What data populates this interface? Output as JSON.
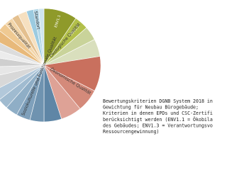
{
  "chart_data": {
    "type": "pie",
    "groups": [
      {
        "label": "Ökologische Qualität",
        "slices": [
          {
            "value": 9.5,
            "color": "#8f9a2a",
            "label": "ENV1.1"
          },
          {
            "value": 4,
            "color": "#b3c04a",
            "label": "ENV1.3"
          },
          {
            "value": 4,
            "color": "#c9d39a",
            "label": null
          },
          {
            "value": 5,
            "color": "#d9dfbd",
            "label": null
          }
        ]
      },
      {
        "label": "Ökonomische Qualität",
        "slices": [
          {
            "value": 10,
            "color": "#c9705e",
            "label": null
          },
          {
            "value": 6.5,
            "color": "#d48a7a",
            "label": null
          },
          {
            "value": 6,
            "color": "#dea296",
            "label": null
          }
        ]
      },
      {
        "label": "Soziokulturelle und Funktionale Qualität",
        "slices": [
          {
            "value": 5,
            "color": "#5f86a6",
            "label": null
          },
          {
            "value": 4,
            "color": "#6f93b0",
            "label": null
          },
          {
            "value": 4,
            "color": "#7fa0bb",
            "label": null
          },
          {
            "value": 3.5,
            "color": "#8faec6",
            "label": null
          },
          {
            "value": 3,
            "color": "#a0bbd0",
            "label": null
          },
          {
            "value": 3,
            "color": "#b2c8da",
            "label": null
          }
        ]
      },
      {
        "label": null,
        "slices": [
          {
            "value": 4,
            "color": "#d8d8d8",
            "label": null
          },
          {
            "value": 3,
            "color": "#e6e6e6",
            "label": null
          },
          {
            "value": 3,
            "color": "#cfcfcf",
            "label": null
          },
          {
            "value": 2.5,
            "color": "#ececec",
            "label": null
          },
          {
            "value": 2.5,
            "color": "#dcdcdc",
            "label": null
          }
        ]
      },
      {
        "label": "Prozessqualität",
        "slices": [
          {
            "value": 3,
            "color": "#e8b97a",
            "label": null
          },
          {
            "value": 2.5,
            "color": "#efc992",
            "label": null
          },
          {
            "value": 2.5,
            "color": "#f3d6ab",
            "label": null
          },
          {
            "value": 2,
            "color": "#e4c08f",
            "label": null
          },
          {
            "value": 2.5,
            "color": "#f6e0c0",
            "label": null
          }
        ]
      },
      {
        "label": "Standort",
        "slices": [
          {
            "value": 2,
            "color": "#9ccbe0",
            "label": null
          },
          {
            "value": 1.5,
            "color": "#b5d8e8",
            "label": null
          },
          {
            "value": 1.5,
            "color": "#cfe5ef",
            "label": null
          }
        ]
      }
    ],
    "caption": [
      "Bewertungskriterien DGNB System 2018 in",
      "Gewichtung für Neubau Bürogebäude;",
      "Kriterien in denen EPDs und CSC-Zertifi",
      "berücksichtigt werden (ENV1.1 = Ökobila",
      "des Gebäudes; ENV1.3 = Verantwortungsvo",
      "Ressourcengewinnung)"
    ]
  }
}
